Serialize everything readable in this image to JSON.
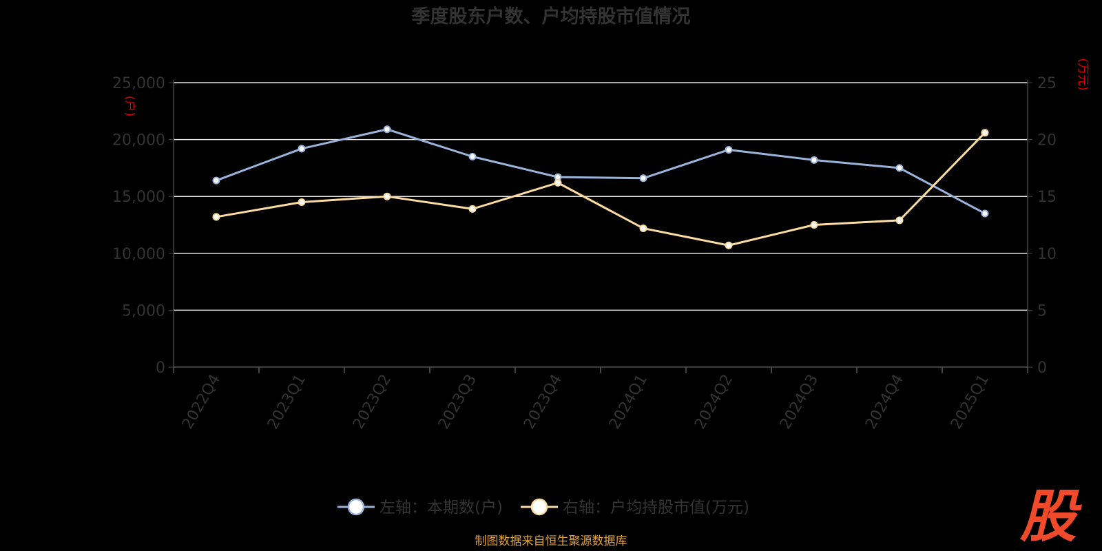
{
  "chart_data": {
    "type": "line",
    "title": "季度股东户数、户均持股市值情况",
    "categories": [
      "2022Q4",
      "2023Q1",
      "2023Q2",
      "2023Q3",
      "2023Q4",
      "2024Q1",
      "2024Q2",
      "2024Q3",
      "2024Q4",
      "2025Q1"
    ],
    "series": [
      {
        "name": "左轴：本期数(户)",
        "axis": "left",
        "color": "#9ab4dc",
        "values": [
          16400,
          19200,
          20900,
          18500,
          16700,
          16600,
          19100,
          18200,
          17500,
          13500
        ]
      },
      {
        "name": "右轴：户均持股市值(万元)",
        "axis": "right",
        "color": "#fcdca0",
        "values": [
          13.2,
          14.5,
          15.0,
          13.9,
          16.2,
          12.2,
          10.7,
          12.5,
          12.9,
          20.6
        ]
      }
    ],
    "left_axis": {
      "unit": "(户)",
      "ylim": [
        0,
        25000
      ],
      "ticks": [
        "0",
        "5,000",
        "10,000",
        "15,000",
        "20,000",
        "25,000"
      ]
    },
    "right_axis": {
      "unit": "(万元)",
      "ylim": [
        0,
        25
      ],
      "ticks": [
        "0",
        "5",
        "10",
        "15",
        "20",
        "25"
      ]
    },
    "grid": true,
    "legend_position": "bottom"
  },
  "source": "制图数据来自恒生聚源数据库",
  "logo_text": "股"
}
